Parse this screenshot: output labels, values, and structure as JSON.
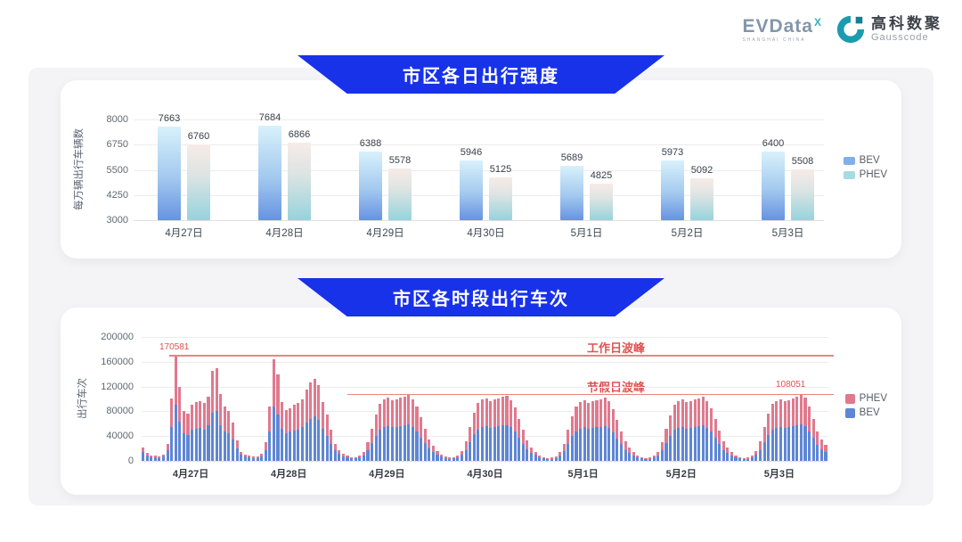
{
  "page": {
    "banner_color": "#1732e8",
    "panel_bg": "#f4f4f6",
    "annotation_red": "#e05252"
  },
  "header": {
    "evdata_logo": "EVData",
    "evdata_sup": "X",
    "evdata_sub": "SHANGHAI CHINA",
    "gausscode_cn": "高科数聚",
    "gausscode_en": "Gausscode"
  },
  "chart_data": [
    {
      "type": "bar",
      "title": "市区各日出行强度",
      "ylabel": "每万辆出行车辆数",
      "ylim": [
        3000,
        8000
      ],
      "yticks": [
        3000,
        4250,
        5500,
        6750,
        8000
      ],
      "grid": true,
      "legend_position": "right",
      "categories": [
        "4月27日",
        "4月28日",
        "4月29日",
        "4月30日",
        "5月1日",
        "5月2日",
        "5月3日"
      ],
      "series": [
        {
          "name": "BEV",
          "legend_color": "#7fb0e8",
          "values": [
            7663,
            7684,
            6388,
            5946,
            5689,
            5973,
            6400
          ]
        },
        {
          "name": "PHEV",
          "legend_color": "#a6dbe1",
          "values": [
            6760,
            6866,
            5578,
            5125,
            4825,
            5092,
            5508
          ]
        }
      ]
    },
    {
      "type": "stacked-bar",
      "title": "市区各时段出行车次",
      "ylabel": "出行车次",
      "ylim": [
        0,
        200000
      ],
      "yticks": [
        0,
        40000,
        80000,
        120000,
        160000,
        200000
      ],
      "grid": true,
      "legend_position": "right",
      "bars_per_category": 24,
      "categories": [
        "4月27日",
        "4月28日",
        "4月29日",
        "4月30日",
        "5月1日",
        "5月2日",
        "5月3日"
      ],
      "series": [
        {
          "name": "BEV",
          "color": "#5e86d5",
          "values": [
            [
              15000,
              9000,
              6200,
              5500,
              4800,
              6800,
              17000,
              55000,
              91000,
              63000,
              44000,
              42000,
              50000,
              52000,
              53000,
              51000,
              57000,
              78000,
              80000,
              58000,
              48000,
              44000,
              35000,
              20000
            ],
            [
              10000,
              6800,
              5500,
              4800,
              4800,
              7400,
              18000,
              48000,
              88000,
              75000,
              52000,
              45000,
              47000,
              49000,
              51000,
              55000,
              62000,
              68000,
              72000,
              66000,
              52000,
              41000,
              28000,
              17000
            ],
            [
              11500,
              7800,
              5200,
              4000,
              4000,
              5200,
              9000,
              17000,
              29000,
              41000,
              51000,
              55000,
              56000,
              54000,
              55000,
              56000,
              57000,
              59000,
              55000,
              48000,
              38000,
              29000,
              20000,
              14000
            ],
            [
              10000,
              6500,
              4600,
              3600,
              4000,
              5200,
              9500,
              18000,
              30000,
              43000,
              51000,
              54000,
              56000,
              53000,
              54000,
              56000,
              57000,
              58000,
              54000,
              47000,
              37000,
              28000,
              19000,
              13000
            ],
            [
              9500,
              5900,
              4300,
              3300,
              3600,
              4900,
              8400,
              16000,
              28000,
              40000,
              48000,
              52000,
              54000,
              52000,
              53000,
              54000,
              55000,
              56000,
              53000,
              46000,
              36000,
              27000,
              18000,
              12500
            ],
            [
              9000,
              5900,
              4000,
              3300,
              3600,
              5200,
              9000,
              17000,
              29000,
              41000,
              50000,
              53000,
              54000,
              52000,
              53000,
              54000,
              56000,
              57000,
              53000,
              47000,
              37000,
              27000,
              18000,
              12500
            ],
            [
              9000,
              5900,
              4000,
              3300,
              3600,
              5200,
              9500,
              18000,
              30000,
              42000,
              51000,
              53000,
              54000,
              53000,
              54000,
              56000,
              57000,
              59000,
              56000,
              48000,
              37000,
              26000,
              19000,
              15000
            ]
          ]
        },
        {
          "name": "PHEV",
          "color": "#e0798e",
          "values": [
            [
              7000,
              4000,
              2800,
              2500,
              2200,
              3200,
              11000,
              46000,
              79581,
              56000,
              36000,
              34000,
              41000,
              43000,
              43000,
              42000,
              47000,
              67000,
              69000,
              50000,
              40000,
              36000,
              27000,
              13000
            ],
            [
              5000,
              3200,
              2500,
              2200,
              2200,
              3600,
              12000,
              40000,
              76000,
              65000,
              43000,
              37000,
              38000,
              41000,
              42000,
              45000,
              53000,
              59000,
              61000,
              56000,
              43000,
              34000,
              22000,
              11000
            ],
            [
              6500,
              4200,
              2800,
              2000,
              2000,
              2800,
              6000,
              13000,
              23000,
              34000,
              41000,
              45000,
              46000,
              44000,
              45000,
              46000,
              47000,
              48000,
              45000,
              40000,
              32000,
              23000,
              15000,
              10000
            ],
            [
              6000,
              3500,
              2400,
              1900,
              2000,
              2800,
              6500,
              14000,
              25000,
              35000,
              42000,
              45000,
              45000,
              44000,
              45000,
              45000,
              46000,
              47000,
              44000,
              39000,
              31000,
              22000,
              14000,
              9000
            ],
            [
              5500,
              3100,
              2200,
              1700,
              1900,
              2600,
              5600,
              12000,
              22000,
              32000,
              40000,
              43000,
              44000,
              42000,
              43000,
              44000,
              45000,
              46000,
              43000,
              38000,
              30000,
              21000,
              14000,
              8500
            ],
            [
              5000,
              3100,
              2000,
              1700,
              1900,
              2800,
              6000,
              13000,
              23000,
              33000,
              40000,
              43000,
              45000,
              43000,
              44000,
              45000,
              45000,
              46000,
              44000,
              38000,
              30000,
              22000,
              14000,
              8500
            ],
            [
              5000,
              3100,
              2000,
              1700,
              1900,
              2800,
              6500,
              14000,
              25000,
              34000,
              41000,
              44000,
              45000,
              43000,
              44000,
              45000,
              47000,
              49051,
              46000,
              40000,
              31000,
              22000,
              15000,
              11000
            ]
          ]
        }
      ],
      "annotations": [
        {
          "label": "工作日波峰",
          "value": 170581,
          "value_label": "170581"
        },
        {
          "label": "节假日波峰",
          "value": 108051,
          "value_label": "108051"
        }
      ]
    }
  ]
}
